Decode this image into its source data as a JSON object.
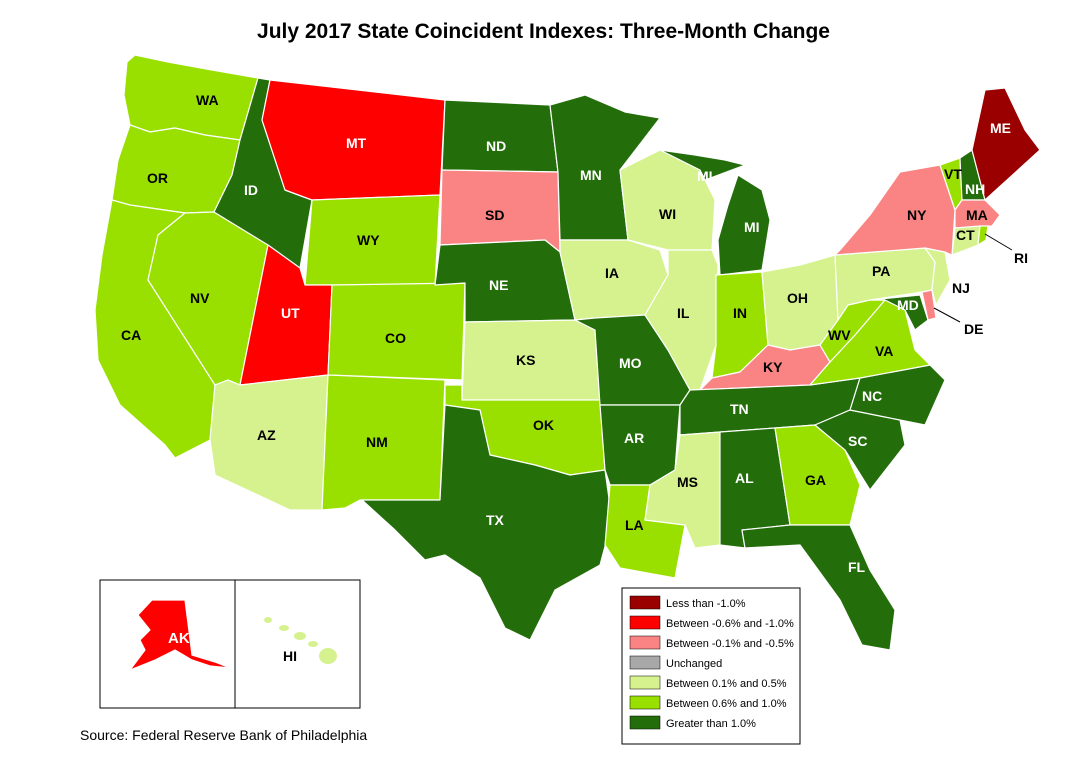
{
  "title": "July 2017 State Coincident Indexes: Three-Month Change",
  "source": "Source: Federal Reserve Bank of Philadelphia",
  "legend": [
    {
      "key": "lt_neg1",
      "label": "Less than -1.0%",
      "color": "#9b0000"
    },
    {
      "key": "neg06_neg1",
      "label": "Between -0.6% and -1.0%",
      "color": "#ff0000"
    },
    {
      "key": "neg01_neg05",
      "label": "Between -0.1% and -0.5%",
      "color": "#fa8484"
    },
    {
      "key": "unchanged",
      "label": "Unchanged",
      "color": "#a8a8a8"
    },
    {
      "key": "pos01_05",
      "label": "Between 0.1% and 0.5%",
      "color": "#d5f28e"
    },
    {
      "key": "pos06_1",
      "label": "Between 0.6% and 1.0%",
      "color": "#99e000"
    },
    {
      "key": "gt_1",
      "label": "Greater than 1.0%",
      "color": "#236e0a"
    }
  ],
  "states": {
    "WA": {
      "label": "WA",
      "category": "pos06_1"
    },
    "OR": {
      "label": "OR",
      "category": "pos06_1"
    },
    "CA": {
      "label": "CA",
      "category": "pos06_1"
    },
    "NV": {
      "label": "NV",
      "category": "pos06_1"
    },
    "ID": {
      "label": "ID",
      "category": "gt_1"
    },
    "MT": {
      "label": "MT",
      "category": "neg06_neg1"
    },
    "WY": {
      "label": "WY",
      "category": "pos06_1"
    },
    "UT": {
      "label": "UT",
      "category": "neg06_neg1"
    },
    "AZ": {
      "label": "AZ",
      "category": "pos01_05"
    },
    "CO": {
      "label": "CO",
      "category": "pos06_1"
    },
    "NM": {
      "label": "NM",
      "category": "pos06_1"
    },
    "ND": {
      "label": "ND",
      "category": "gt_1"
    },
    "SD": {
      "label": "SD",
      "category": "neg01_neg05"
    },
    "NE": {
      "label": "NE",
      "category": "gt_1"
    },
    "KS": {
      "label": "KS",
      "category": "pos01_05"
    },
    "OK": {
      "label": "OK",
      "category": "pos06_1"
    },
    "TX": {
      "label": "TX",
      "category": "gt_1"
    },
    "MN": {
      "label": "MN",
      "category": "gt_1"
    },
    "IA": {
      "label": "IA",
      "category": "pos01_05"
    },
    "MO": {
      "label": "MO",
      "category": "gt_1"
    },
    "AR": {
      "label": "AR",
      "category": "gt_1"
    },
    "LA": {
      "label": "LA",
      "category": "pos06_1"
    },
    "WI": {
      "label": "WI",
      "category": "pos01_05"
    },
    "IL": {
      "label": "IL",
      "category": "pos01_05"
    },
    "MI": {
      "label": "MI",
      "category": "gt_1"
    },
    "IN": {
      "label": "IN",
      "category": "pos06_1"
    },
    "OH": {
      "label": "OH",
      "category": "pos01_05"
    },
    "KY": {
      "label": "KY",
      "category": "neg01_neg05"
    },
    "TN": {
      "label": "TN",
      "category": "gt_1"
    },
    "MS": {
      "label": "MS",
      "category": "pos01_05"
    },
    "AL": {
      "label": "AL",
      "category": "gt_1"
    },
    "GA": {
      "label": "GA",
      "category": "pos06_1"
    },
    "FL": {
      "label": "FL",
      "category": "gt_1"
    },
    "SC": {
      "label": "SC",
      "category": "gt_1"
    },
    "NC": {
      "label": "NC",
      "category": "gt_1"
    },
    "VA": {
      "label": "VA",
      "category": "pos06_1"
    },
    "WV": {
      "label": "WV",
      "category": "pos06_1"
    },
    "MD": {
      "label": "MD",
      "category": "gt_1"
    },
    "DE": {
      "label": "DE",
      "category": "neg01_neg05"
    },
    "PA": {
      "label": "PA",
      "category": "pos01_05"
    },
    "NJ": {
      "label": "NJ",
      "category": "pos01_05"
    },
    "NY": {
      "label": "NY",
      "category": "neg01_neg05"
    },
    "CT": {
      "label": "CT",
      "category": "pos01_05"
    },
    "RI": {
      "label": "RI",
      "category": "pos06_1"
    },
    "MA": {
      "label": "MA",
      "category": "neg01_neg05"
    },
    "VT": {
      "label": "VT",
      "category": "pos06_1"
    },
    "NH": {
      "label": "NH",
      "category": "gt_1"
    },
    "ME": {
      "label": "ME",
      "category": "lt_neg1"
    },
    "AK": {
      "label": "AK",
      "category": "neg06_neg1"
    },
    "HI": {
      "label": "HI",
      "category": "pos01_05"
    }
  }
}
